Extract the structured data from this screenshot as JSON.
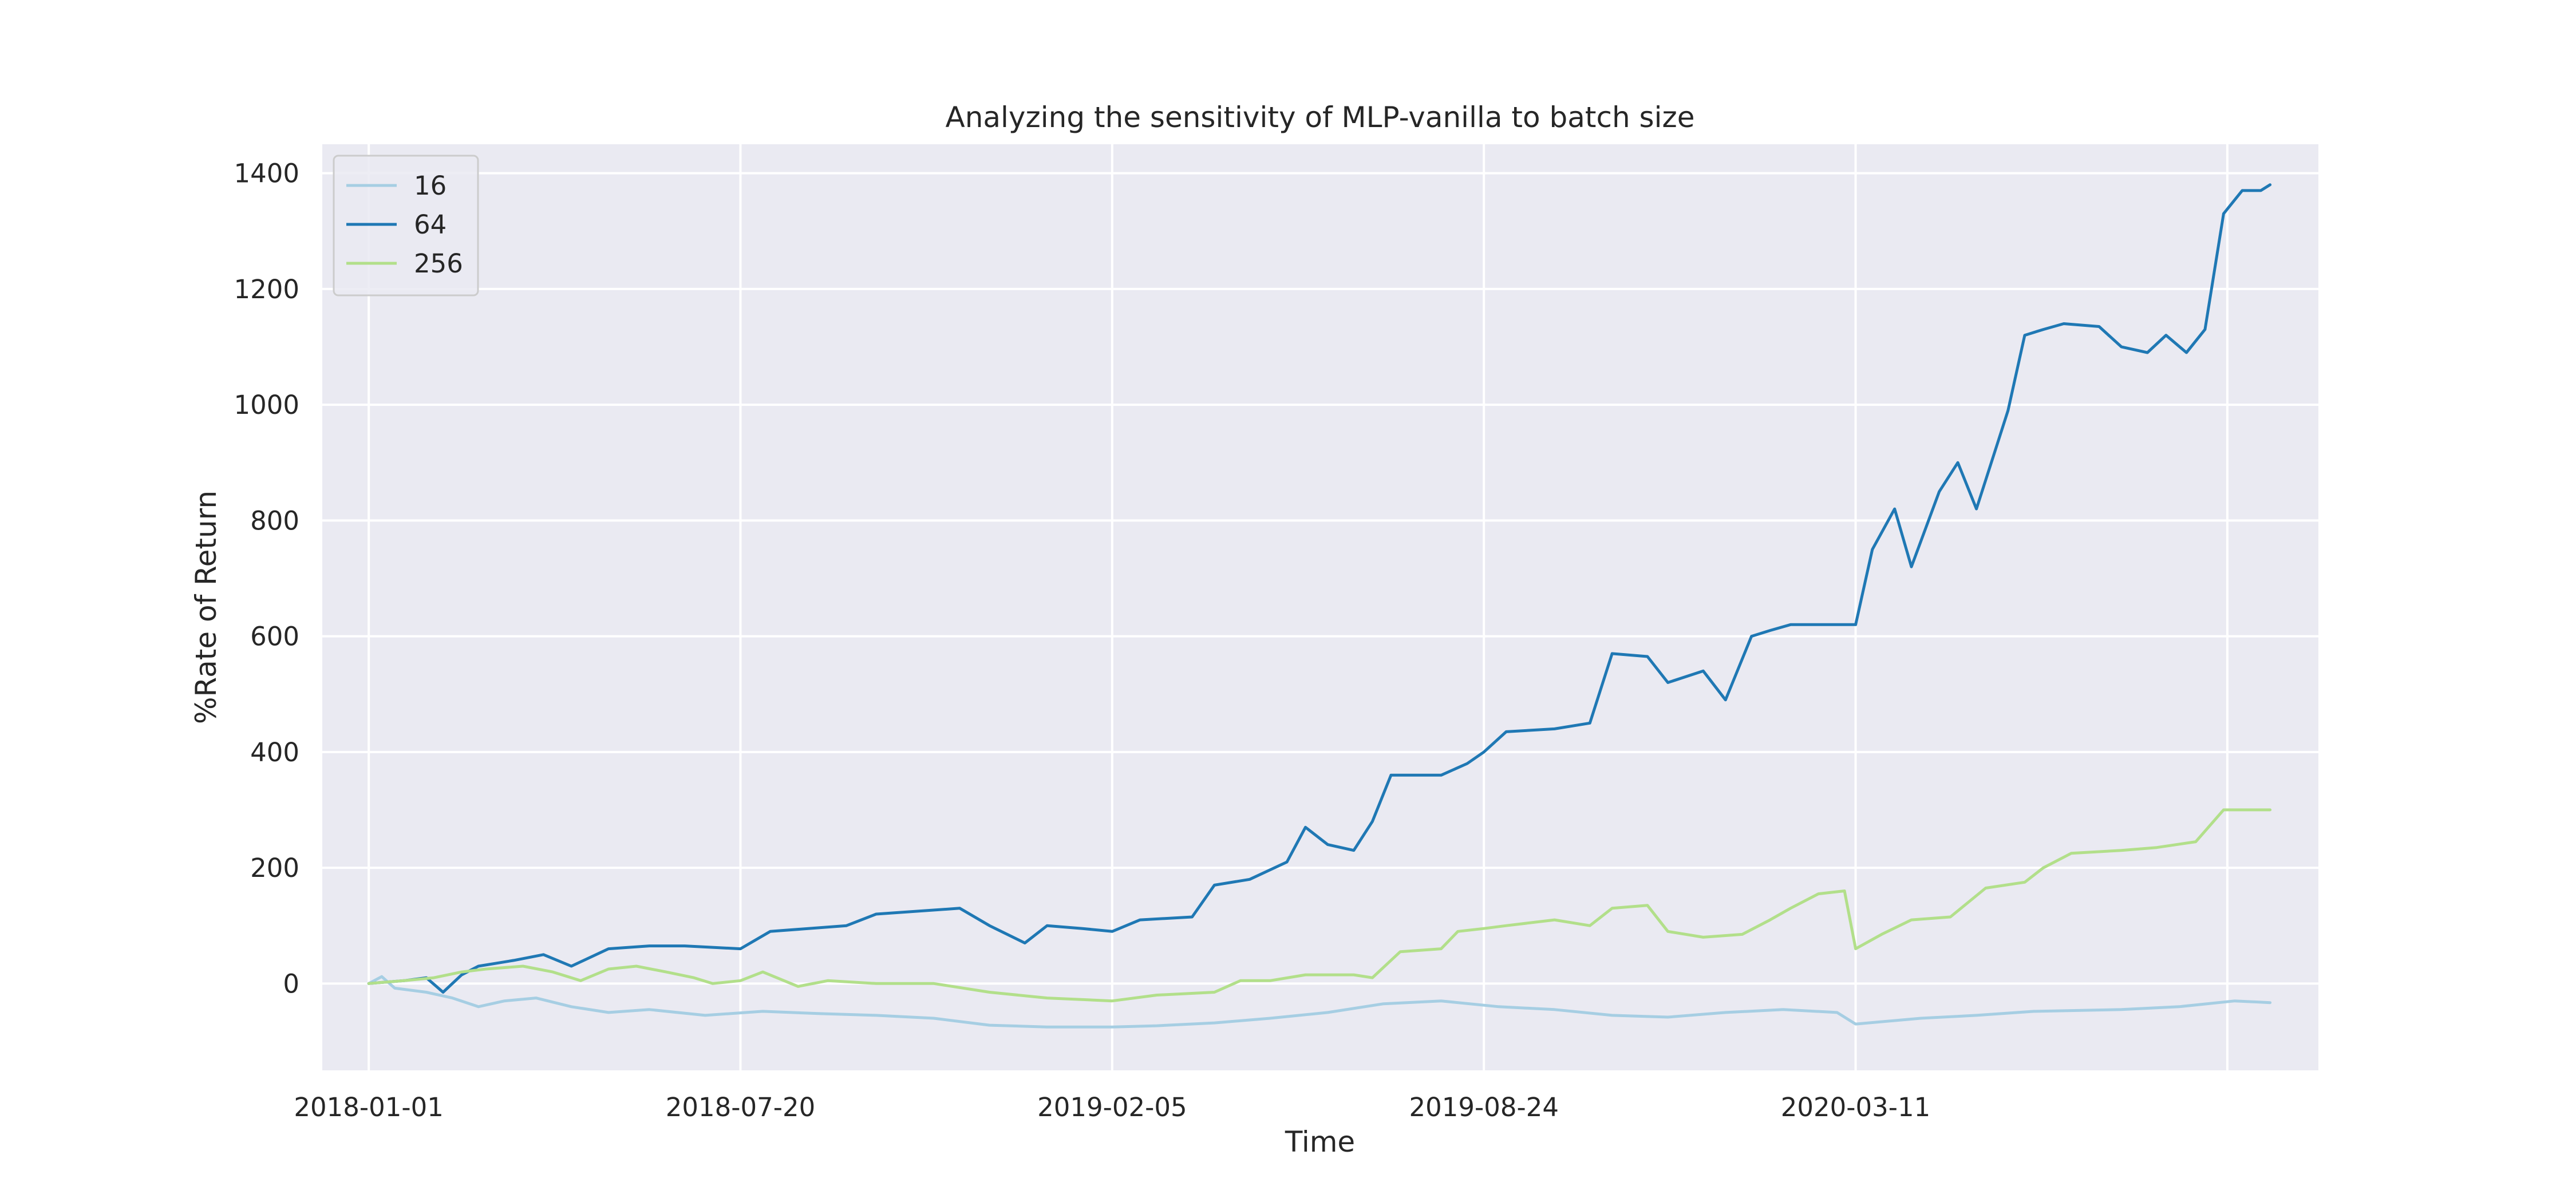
{
  "chart_data": {
    "type": "line",
    "title": "Analyzing the sensitivity of MLP-vanilla to batch size",
    "xlabel": "Time",
    "ylabel": "%Rate of Return",
    "x_ticks": [
      "2018-01-01",
      "2018-07-20",
      "2019-02-05",
      "2019-08-24",
      "2020-03-11"
    ],
    "y_ticks": [
      "0",
      "200",
      "400",
      "600",
      "800",
      "1000",
      "1200",
      "1400"
    ],
    "xlim": [
      "2017-12-07",
      "2020-11-15"
    ],
    "ylim": [
      -150,
      1450
    ],
    "grid": true,
    "legend_position": "top-left",
    "background_color": "#eaeaf2",
    "series": [
      {
        "name": "16",
        "color": "#a6cee3",
        "points": [
          [
            "2018-01-01",
            0
          ],
          [
            "2018-01-08",
            12
          ],
          [
            "2018-01-15",
            -8
          ],
          [
            "2018-02-01",
            -15
          ],
          [
            "2018-02-15",
            -25
          ],
          [
            "2018-03-01",
            -40
          ],
          [
            "2018-03-15",
            -30
          ],
          [
            "2018-04-01",
            -25
          ],
          [
            "2018-04-20",
            -40
          ],
          [
            "2018-05-10",
            -50
          ],
          [
            "2018-06-01",
            -45
          ],
          [
            "2018-07-01",
            -55
          ],
          [
            "2018-08-01",
            -48
          ],
          [
            "2018-09-01",
            -52
          ],
          [
            "2018-10-01",
            -55
          ],
          [
            "2018-11-01",
            -60
          ],
          [
            "2018-12-01",
            -72
          ],
          [
            "2019-01-01",
            -75
          ],
          [
            "2019-02-05",
            -75
          ],
          [
            "2019-03-01",
            -73
          ],
          [
            "2019-04-01",
            -68
          ],
          [
            "2019-05-01",
            -60
          ],
          [
            "2019-06-01",
            -50
          ],
          [
            "2019-07-01",
            -35
          ],
          [
            "2019-08-01",
            -30
          ],
          [
            "2019-09-01",
            -40
          ],
          [
            "2019-10-01",
            -45
          ],
          [
            "2019-11-01",
            -55
          ],
          [
            "2019-12-01",
            -58
          ],
          [
            "2020-01-01",
            -50
          ],
          [
            "2020-02-01",
            -45
          ],
          [
            "2020-03-01",
            -50
          ],
          [
            "2020-03-11",
            -70
          ],
          [
            "2020-04-15",
            -60
          ],
          [
            "2020-05-15",
            -55
          ],
          [
            "2020-06-15",
            -48
          ],
          [
            "2020-08-01",
            -45
          ],
          [
            "2020-09-01",
            -40
          ],
          [
            "2020-10-01",
            -30
          ],
          [
            "2020-10-20",
            -33
          ]
        ]
      },
      {
        "name": "64",
        "color": "#1f78b4",
        "points": [
          [
            "2018-01-01",
            0
          ],
          [
            "2018-01-20",
            5
          ],
          [
            "2018-02-01",
            10
          ],
          [
            "2018-02-10",
            -15
          ],
          [
            "2018-02-20",
            15
          ],
          [
            "2018-03-01",
            30
          ],
          [
            "2018-03-20",
            40
          ],
          [
            "2018-04-05",
            50
          ],
          [
            "2018-04-20",
            30
          ],
          [
            "2018-05-10",
            60
          ],
          [
            "2018-06-01",
            65
          ],
          [
            "2018-06-20",
            65
          ],
          [
            "2018-07-20",
            60
          ],
          [
            "2018-08-05",
            90
          ],
          [
            "2018-09-15",
            100
          ],
          [
            "2018-10-01",
            120
          ],
          [
            "2018-11-15",
            130
          ],
          [
            "2018-12-01",
            100
          ],
          [
            "2018-12-20",
            70
          ],
          [
            "2019-01-01",
            100
          ],
          [
            "2019-01-20",
            95
          ],
          [
            "2019-02-05",
            90
          ],
          [
            "2019-02-20",
            110
          ],
          [
            "2019-03-20",
            115
          ],
          [
            "2019-04-01",
            170
          ],
          [
            "2019-04-20",
            180
          ],
          [
            "2019-05-10",
            210
          ],
          [
            "2019-05-20",
            270
          ],
          [
            "2019-06-01",
            240
          ],
          [
            "2019-06-15",
            230
          ],
          [
            "2019-06-25",
            280
          ],
          [
            "2019-07-05",
            360
          ],
          [
            "2019-08-01",
            360
          ],
          [
            "2019-08-15",
            380
          ],
          [
            "2019-08-24",
            400
          ],
          [
            "2019-09-05",
            435
          ],
          [
            "2019-10-01",
            440
          ],
          [
            "2019-10-20",
            450
          ],
          [
            "2019-11-01",
            570
          ],
          [
            "2019-11-20",
            565
          ],
          [
            "2019-12-01",
            520
          ],
          [
            "2019-12-20",
            540
          ],
          [
            "2020-01-01",
            490
          ],
          [
            "2020-01-15",
            600
          ],
          [
            "2020-01-25",
            610
          ],
          [
            "2020-02-05",
            620
          ],
          [
            "2020-03-11",
            620
          ],
          [
            "2020-03-20",
            750
          ],
          [
            "2020-04-01",
            820
          ],
          [
            "2020-04-10",
            720
          ],
          [
            "2020-04-25",
            850
          ],
          [
            "2020-05-05",
            900
          ],
          [
            "2020-05-15",
            820
          ],
          [
            "2020-05-25",
            920
          ],
          [
            "2020-06-01",
            990
          ],
          [
            "2020-06-10",
            1120
          ],
          [
            "2020-06-20",
            1130
          ],
          [
            "2020-07-01",
            1140
          ],
          [
            "2020-07-20",
            1135
          ],
          [
            "2020-08-01",
            1100
          ],
          [
            "2020-08-15",
            1090
          ],
          [
            "2020-08-25",
            1120
          ],
          [
            "2020-09-05",
            1090
          ],
          [
            "2020-09-15",
            1130
          ],
          [
            "2020-09-25",
            1330
          ],
          [
            "2020-10-05",
            1370
          ],
          [
            "2020-10-15",
            1370
          ],
          [
            "2020-10-20",
            1380
          ]
        ]
      },
      {
        "name": "256",
        "color": "#b2df8a",
        "points": [
          [
            "2018-01-01",
            0
          ],
          [
            "2018-01-20",
            5
          ],
          [
            "2018-02-05",
            10
          ],
          [
            "2018-02-20",
            20
          ],
          [
            "2018-03-05",
            25
          ],
          [
            "2018-03-25",
            30
          ],
          [
            "2018-04-10",
            20
          ],
          [
            "2018-04-25",
            5
          ],
          [
            "2018-05-10",
            25
          ],
          [
            "2018-05-25",
            30
          ],
          [
            "2018-06-10",
            20
          ],
          [
            "2018-06-25",
            10
          ],
          [
            "2018-07-05",
            0
          ],
          [
            "2018-07-20",
            5
          ],
          [
            "2018-08-01",
            20
          ],
          [
            "2018-08-20",
            -5
          ],
          [
            "2018-09-05",
            5
          ],
          [
            "2018-10-01",
            0
          ],
          [
            "2018-11-01",
            0
          ],
          [
            "2018-12-01",
            -15
          ],
          [
            "2019-01-01",
            -25
          ],
          [
            "2019-02-05",
            -30
          ],
          [
            "2019-03-01",
            -20
          ],
          [
            "2019-04-01",
            -15
          ],
          [
            "2019-04-15",
            5
          ],
          [
            "2019-05-01",
            5
          ],
          [
            "2019-05-20",
            15
          ],
          [
            "2019-06-15",
            15
          ],
          [
            "2019-06-25",
            10
          ],
          [
            "2019-07-10",
            55
          ],
          [
            "2019-08-01",
            60
          ],
          [
            "2019-08-10",
            90
          ],
          [
            "2019-08-24",
            95
          ],
          [
            "2019-09-05",
            100
          ],
          [
            "2019-10-01",
            110
          ],
          [
            "2019-10-20",
            100
          ],
          [
            "2019-11-01",
            130
          ],
          [
            "2019-11-20",
            135
          ],
          [
            "2019-12-01",
            90
          ],
          [
            "2019-12-20",
            80
          ],
          [
            "2020-01-10",
            85
          ],
          [
            "2020-01-25",
            110
          ],
          [
            "2020-02-05",
            130
          ],
          [
            "2020-02-20",
            155
          ],
          [
            "2020-03-05",
            160
          ],
          [
            "2020-03-11",
            60
          ],
          [
            "2020-03-25",
            85
          ],
          [
            "2020-04-10",
            110
          ],
          [
            "2020-05-01",
            115
          ],
          [
            "2020-05-20",
            165
          ],
          [
            "2020-06-10",
            175
          ],
          [
            "2020-06-20",
            200
          ],
          [
            "2020-07-05",
            225
          ],
          [
            "2020-08-01",
            230
          ],
          [
            "2020-08-20",
            235
          ],
          [
            "2020-09-10",
            245
          ],
          [
            "2020-09-25",
            300
          ],
          [
            "2020-10-20",
            300
          ]
        ]
      }
    ]
  }
}
